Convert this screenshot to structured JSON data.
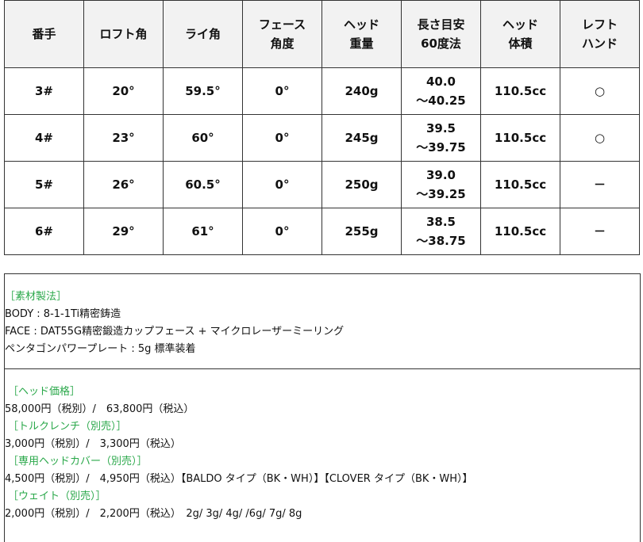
{
  "table": {
    "headers": [
      [
        "番手"
      ],
      [
        "ロフト角"
      ],
      [
        "ライ角"
      ],
      [
        "フェース",
        "角度"
      ],
      [
        "ヘッド",
        "重量"
      ],
      [
        "長さ目安",
        "60度法"
      ],
      [
        "ヘッド",
        "体積"
      ],
      [
        "レフト",
        "ハンド"
      ]
    ],
    "rows": [
      [
        [
          "3#"
        ],
        [
          "20°"
        ],
        [
          "59.5°"
        ],
        [
          "0°"
        ],
        [
          "240g"
        ],
        [
          "40.0",
          "～40.25"
        ],
        [
          "110.5cc"
        ],
        [
          "○"
        ]
      ],
      [
        [
          "4#"
        ],
        [
          "23°"
        ],
        [
          "60°"
        ],
        [
          "0°"
        ],
        [
          "245g"
        ],
        [
          "39.5",
          "～39.75"
        ],
        [
          "110.5cc"
        ],
        [
          "○"
        ]
      ],
      [
        [
          "5#"
        ],
        [
          "26°"
        ],
        [
          "60.5°"
        ],
        [
          "0°"
        ],
        [
          "250g"
        ],
        [
          "39.0",
          "～39.25"
        ],
        [
          "110.5cc"
        ],
        [
          "－"
        ]
      ],
      [
        [
          "6#"
        ],
        [
          "29°"
        ],
        [
          "61°"
        ],
        [
          "0°"
        ],
        [
          "255g"
        ],
        [
          "38.5",
          "～38.75"
        ],
        [
          "110.5cc"
        ],
        [
          "－"
        ]
      ]
    ]
  },
  "materials": {
    "heading": "［素材製法］",
    "lines": [
      "BODY : 8-1-1Ti精密鋳造",
      "FACE : DAT55G精密鍛造カップフェース + マイクロレーザーミーリング",
      "ペンタゴンパワープレート : 5g 標準装着"
    ]
  },
  "prices": [
    {
      "heading": "［ヘッド価格］",
      "text": "58,000円（税別）/　63,800円（税込）"
    },
    {
      "heading": "［トルクレンチ（別売）］",
      "text": "3,000円（税別）/　3,300円（税込）"
    },
    {
      "heading": "［専用ヘッドカバー（別売）］",
      "text": "4,500円（税別）/　4,950円（税込）【BALDO タイプ（BK・WH）】【CLOVER タイプ（BK・WH）】"
    },
    {
      "heading": "［ウェイト（別売）］",
      "text": "2,000円（税別）/　2,200円（税込）　2g/ 3g/ 4g/ /6g/ 7g/ 8g"
    }
  ],
  "colors": {
    "heading": "#2aa84a",
    "header_bg": "#f2f2f2"
  }
}
